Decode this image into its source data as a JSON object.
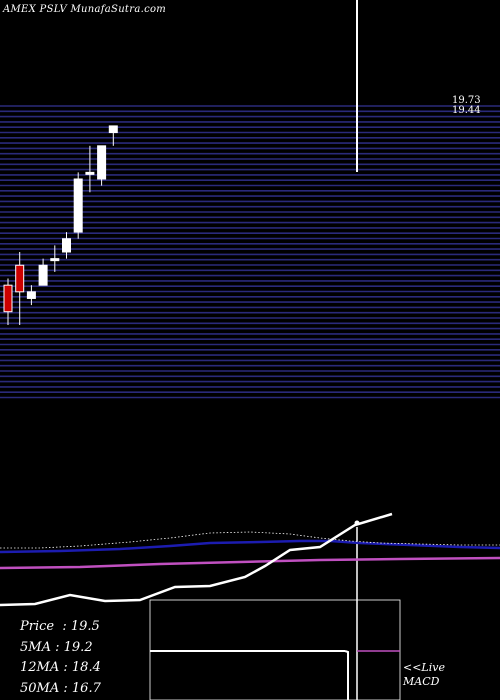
{
  "header": {
    "title": "AMEX  PSLV MunafaSutra.com"
  },
  "stats": [
    {
      "label": "Price",
      "value": "19.5"
    },
    {
      "label": "5MA",
      "value": "19.2"
    },
    {
      "label": "12MA",
      "value": "18.4"
    },
    {
      "label": "50MA",
      "value": "16.7"
    }
  ],
  "macd_panel": {
    "live_label": "<<Live",
    "macd_label": "MACD"
  },
  "colors": {
    "background": "#000000",
    "grid": "#2a2a7a",
    "up_candle": "#ffffff",
    "down_candle": "#cc0000",
    "ma_blue": "#1c1cb0",
    "ma_magenta": "#c050c0",
    "white_line": "#ffffff"
  },
  "chart_data": {
    "type": "candlestick",
    "price_axis": {
      "top_label": "19.73",
      "second_label": "19.44",
      "ylim": [
        15.5,
        19.9
      ]
    },
    "candles": [
      {
        "open": 17.2,
        "high": 17.3,
        "low": 16.6,
        "close": 16.8,
        "dir": "down"
      },
      {
        "open": 17.5,
        "high": 17.7,
        "low": 16.6,
        "close": 17.1,
        "dir": "down"
      },
      {
        "open": 17.0,
        "high": 17.2,
        "low": 16.9,
        "close": 17.1,
        "dir": "up"
      },
      {
        "open": 17.2,
        "high": 17.6,
        "low": 17.2,
        "close": 17.5,
        "dir": "up"
      },
      {
        "open": 17.6,
        "high": 17.8,
        "low": 17.4,
        "close": 17.6,
        "dir": "up"
      },
      {
        "open": 17.7,
        "high": 18.0,
        "low": 17.6,
        "close": 17.9,
        "dir": "up"
      },
      {
        "open": 18.0,
        "high": 18.9,
        "low": 17.9,
        "close": 18.8,
        "dir": "up"
      },
      {
        "open": 18.9,
        "high": 19.3,
        "low": 18.6,
        "close": 18.9,
        "dir": "up"
      },
      {
        "open": 18.8,
        "high": 19.3,
        "low": 18.7,
        "close": 19.3,
        "dir": "up"
      },
      {
        "open": 19.5,
        "high": 19.6,
        "low": 19.3,
        "close": 19.6,
        "dir": "up"
      }
    ]
  }
}
